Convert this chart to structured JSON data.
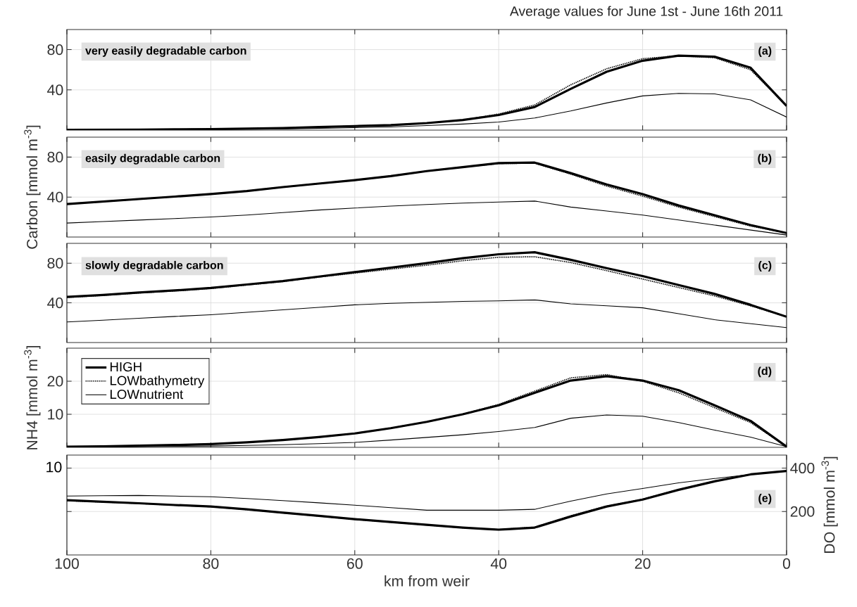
{
  "chart_data": [
    {
      "type": "line",
      "title": "Average values for June 1st - June 16th 2011",
      "annotations": [
        "very easily degradable carbon",
        "(a)"
      ],
      "x": [
        100,
        95,
        90,
        85,
        80,
        75,
        70,
        65,
        60,
        55,
        50,
        45,
        40,
        35,
        30,
        25,
        20,
        15,
        10,
        5,
        0
      ],
      "xlim": [
        100,
        0
      ],
      "xticks": [
        100,
        80,
        60,
        40,
        20,
        0
      ],
      "ylim": [
        0,
        100
      ],
      "yticks": [
        40,
        80
      ],
      "grid": true,
      "tick_labels": "y",
      "series": [
        {
          "color": "#000000",
          "line_style": "solid",
          "values": [
            0.3,
            0.4,
            0.5,
            0.8,
            1,
            1.5,
            2,
            3,
            4,
            5,
            7,
            10,
            15,
            23,
            41,
            58,
            69,
            74,
            73,
            62,
            24
          ]
        },
        {
          "color": "#000000",
          "line_style": "dotted",
          "values": [
            0.3,
            0.4,
            0.5,
            0.8,
            1,
            1.5,
            2,
            3,
            4,
            5,
            7,
            10,
            16,
            25,
            45,
            61,
            71,
            74,
            72,
            60,
            24
          ]
        },
        {
          "color": "#000000",
          "line_style": "solid",
          "values": [
            0.2,
            0.2,
            0.3,
            0.5,
            0.8,
            1,
            1.3,
            1.8,
            2.5,
            3.2,
            4.5,
            6,
            8,
            12,
            19,
            27,
            34,
            36.5,
            36,
            30,
            13
          ]
        }
      ]
    },
    {
      "type": "line",
      "ylabel": "Carbon [mmol m$^{-3}$]",
      "annotations": [
        "easily degradable carbon",
        "(b)"
      ],
      "x": [
        100,
        95,
        90,
        85,
        80,
        75,
        70,
        65,
        60,
        55,
        50,
        45,
        40,
        35,
        30,
        25,
        20,
        15,
        10,
        5,
        0
      ],
      "xlim": [
        100,
        0
      ],
      "xticks": [
        100,
        80,
        60,
        40,
        20,
        0
      ],
      "ylim": [
        0,
        100
      ],
      "yticks": [
        40,
        80
      ],
      "grid": true,
      "tick_labels": "y",
      "series": [
        {
          "color": "#000000",
          "line_style": "solid",
          "values": [
            33,
            35.5,
            38,
            40.5,
            43,
            46,
            50,
            53.5,
            57,
            61,
            66,
            70,
            74,
            74.5,
            64,
            52.6,
            43,
            31.6,
            21.8,
            12,
            4
          ]
        },
        {
          "color": "#000000",
          "line_style": "dotted",
          "values": [
            33,
            35.5,
            38,
            40.5,
            43,
            46,
            50,
            53.5,
            57,
            61,
            66,
            70,
            73.5,
            74,
            63,
            51,
            41,
            30,
            20.5,
            11,
            4
          ]
        },
        {
          "color": "#000000",
          "line_style": "solid",
          "values": [
            14,
            15.5,
            17,
            18.5,
            20,
            22,
            24.5,
            27,
            29,
            31,
            32.5,
            34,
            35,
            36,
            30,
            26,
            22,
            17,
            12,
            7,
            2
          ]
        }
      ]
    },
    {
      "type": "line",
      "annotations": [
        "slowly degradable carbon",
        "(c)"
      ],
      "x": [
        100,
        95,
        90,
        85,
        80,
        75,
        70,
        65,
        60,
        55,
        50,
        45,
        40,
        35,
        30,
        25,
        20,
        15,
        10,
        5,
        0
      ],
      "xlim": [
        100,
        0
      ],
      "xticks": [
        100,
        80,
        60,
        40,
        20,
        0
      ],
      "ylim": [
        0,
        100
      ],
      "yticks": [
        40,
        80
      ],
      "grid": true,
      "tick_labels": "y",
      "series": [
        {
          "color": "#000000",
          "line_style": "solid",
          "values": [
            46,
            48,
            50.5,
            52.5,
            55,
            58.5,
            62,
            66.5,
            71,
            75.5,
            80,
            85,
            89,
            91,
            83.4,
            75,
            67,
            58,
            49,
            38,
            26
          ]
        },
        {
          "color": "#000000",
          "line_style": "dotted",
          "values": [
            45.5,
            47.5,
            50,
            52,
            54.5,
            58,
            61.5,
            66,
            70,
            74,
            78,
            82.5,
            86,
            86.5,
            80.7,
            72.5,
            64,
            55.5,
            47,
            37,
            26
          ]
        },
        {
          "color": "#000000",
          "line_style": "solid",
          "values": [
            20.7,
            22.5,
            24.5,
            26.3,
            28,
            30.5,
            33,
            35.5,
            38,
            39.5,
            40.5,
            41.5,
            42,
            43,
            39,
            37,
            35,
            29,
            23,
            19,
            15
          ]
        }
      ]
    },
    {
      "type": "line",
      "ylabel": "NH4 [mmol m$^{-3}$]",
      "annotations": [
        "(d)"
      ],
      "x": [
        100,
        95,
        90,
        85,
        80,
        75,
        70,
        65,
        60,
        55,
        50,
        45,
        40,
        35,
        30,
        25,
        20,
        15,
        10,
        5,
        0
      ],
      "xlim": [
        100,
        0
      ],
      "xticks": [
        100,
        80,
        60,
        40,
        20,
        0
      ],
      "ylim": [
        0,
        30
      ],
      "yticks": [
        10,
        20
      ],
      "grid": true,
      "tick_labels": "y",
      "legend": "top left",
      "series": [
        {
          "name": "HIGH",
          "color": "#000000",
          "line_style": "solid",
          "values": [
            0.2,
            0.3,
            0.5,
            0.7,
            1,
            1.5,
            2.2,
            3.1,
            4.2,
            5.8,
            7.7,
            10,
            12.7,
            16.5,
            20.2,
            21.5,
            20.2,
            17.3,
            12.7,
            8,
            0.2
          ]
        },
        {
          "name": "LOWbathymetry",
          "color": "#000000",
          "line_style": "dotted",
          "values": [
            0.2,
            0.3,
            0.5,
            0.7,
            1,
            1.5,
            2.2,
            3.1,
            4.2,
            5.8,
            7.7,
            10,
            13,
            17,
            21,
            22,
            20,
            16.5,
            12,
            7.5,
            0.2
          ]
        },
        {
          "name": "LOWnutrient",
          "color": "#000000",
          "line_style": "solid",
          "values": [
            0.1,
            0.1,
            0.2,
            0.3,
            0.4,
            0.6,
            0.8,
            1.1,
            1.5,
            2.2,
            3,
            3.8,
            4.8,
            6,
            8.8,
            9.8,
            9.4,
            7.5,
            5.2,
            3.1,
            0.2
          ]
        }
      ]
    },
    {
      "type": "line",
      "xlabel": "km from weir",
      "y2label": "DO [mmol m$^{-3}$]",
      "annotations": [
        "(e)",
        "10"
      ],
      "x": [
        100,
        95,
        90,
        85,
        80,
        75,
        70,
        65,
        60,
        55,
        50,
        45,
        40,
        35,
        30,
        25,
        20,
        15,
        10,
        5,
        0
      ],
      "xlim": [
        100,
        0
      ],
      "xticks": [
        100,
        80,
        60,
        40,
        20,
        0
      ],
      "y2lim": [
        0,
        460
      ],
      "y2ticks": [
        200,
        400
      ],
      "grid": true,
      "series": [
        {
          "color": "#000000",
          "line_style": "solid",
          "axis": "y2",
          "values": [
            252,
            245,
            238,
            230,
            223,
            210,
            195,
            180,
            165,
            152,
            139,
            126,
            116,
            126,
            177,
            223,
            255,
            300,
            339,
            371,
            387
          ]
        },
        {
          "color": "#000000",
          "line_style": "dotted",
          "axis": "y2",
          "values": [
            250,
            244,
            237,
            229,
            222,
            209,
            194,
            179,
            164,
            151,
            138,
            125,
            117,
            128,
            180,
            225,
            257,
            301,
            340,
            371,
            387
          ]
        },
        {
          "color": "#000000",
          "line_style": "solid",
          "axis": "y2",
          "values": [
            271,
            273,
            274,
            271,
            268,
            260,
            250,
            240,
            229,
            218,
            206,
            206,
            206,
            210,
            248,
            281,
            306,
            332,
            352,
            371,
            387
          ]
        }
      ]
    }
  ]
}
